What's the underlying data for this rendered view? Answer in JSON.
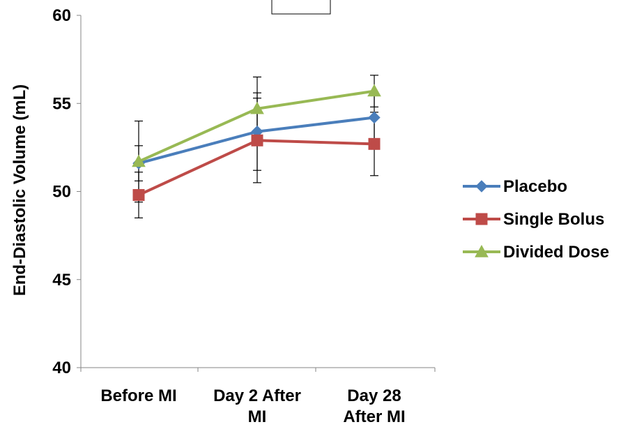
{
  "chart_data": {
    "type": "line",
    "title": "",
    "xlabel": "",
    "ylabel": "End-Diastolic Volume (mL)",
    "ylim": [
      40,
      60
    ],
    "yticks": [
      40,
      45,
      50,
      55,
      60
    ],
    "grid": false,
    "legend_position": "right",
    "categories": [
      [
        "Before MI"
      ],
      [
        "Day 2 After",
        "MI"
      ],
      [
        "Day 28",
        "After MI"
      ]
    ],
    "series": [
      {
        "name": "Placebo",
        "color": "#4a7ebb",
        "marker": "diamond",
        "values": [
          51.6,
          53.4,
          54.2
        ],
        "error": [
          1.0,
          2.2,
          1.4
        ]
      },
      {
        "name": "Single Bolus",
        "color": "#be4b48",
        "marker": "square",
        "values": [
          49.8,
          52.9,
          52.7
        ],
        "error": [
          1.3,
          2.4,
          1.8
        ]
      },
      {
        "name": "Divided Dose",
        "color": "#98b954",
        "marker": "triangle",
        "values": [
          51.7,
          54.7,
          55.7
        ],
        "error": [
          2.3,
          1.8,
          0.9
        ]
      }
    ]
  }
}
